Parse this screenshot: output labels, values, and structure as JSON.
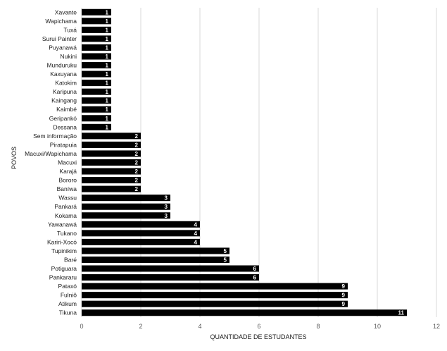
{
  "chart_data": {
    "type": "bar",
    "orientation": "horizontal",
    "categories": [
      "Xavante",
      "Wapichama",
      "Tuxá",
      "Surui Painter",
      "Puyanawá",
      "Nukini",
      "Munduruku",
      "Kaxuyana",
      "Katokim",
      "Karipuna",
      "Kaingang",
      "Kaimbé",
      "Geripankó",
      "Dessana",
      "Sem informação",
      "Piratapuia",
      "Macuxi/Wapichama",
      "Macuxi",
      "Karajá",
      "Bororo",
      "Baníwa",
      "Wassu",
      "Pankará",
      "Kokama",
      "Yawanawá",
      "Tukano",
      "Kariri-Xocó",
      "Tupinikim",
      "Baré",
      "Potiguara",
      "Pankararu",
      "Pataxó",
      "Fulniô",
      "Atikum",
      "Tikuna"
    ],
    "values": [
      1,
      1,
      1,
      1,
      1,
      1,
      1,
      1,
      1,
      1,
      1,
      1,
      1,
      1,
      2,
      2,
      2,
      2,
      2,
      2,
      2,
      3,
      3,
      3,
      4,
      4,
      4,
      5,
      5,
      6,
      6,
      9,
      9,
      9,
      11
    ],
    "xlabel": "QUANTIDADE DE ESTUDANTES",
    "ylabel": "POVOS",
    "xlim": [
      0,
      12
    ],
    "xticks": [
      "0",
      "2",
      "4",
      "6",
      "8",
      "10",
      "12"
    ],
    "grid": "vertical",
    "legend": "none",
    "bar_color": "#000000",
    "label_color": "#ffffff"
  }
}
